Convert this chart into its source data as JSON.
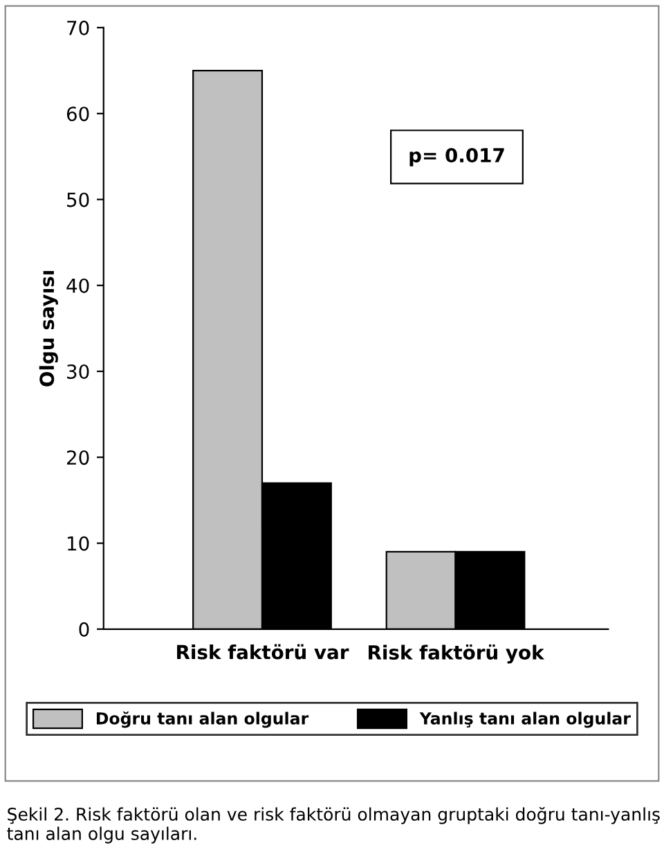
{
  "chart_data": {
    "type": "bar",
    "ylabel": "Olgu sayısı",
    "categories": [
      "Risk faktörü var",
      "Risk faktörü yok"
    ],
    "series": [
      {
        "name": "Doğru tanı alan olgular",
        "color": "#c0c0c0",
        "values": [
          65,
          9
        ]
      },
      {
        "name": "Yanlış tanı alan olgular",
        "color": "#000000",
        "values": [
          17,
          9
        ]
      }
    ],
    "ylim": [
      0,
      70
    ],
    "yticks": [
      0,
      10,
      20,
      30,
      40,
      50,
      60,
      70
    ],
    "grid": false,
    "legend": "bottom",
    "annotations": [
      "p= 0.017",
      "Şekil 2. Risk faktörü olan ve risk faktörü olmayan gruptaki doğru tanı-yanlış tanı alan olgu sayıları."
    ]
  }
}
